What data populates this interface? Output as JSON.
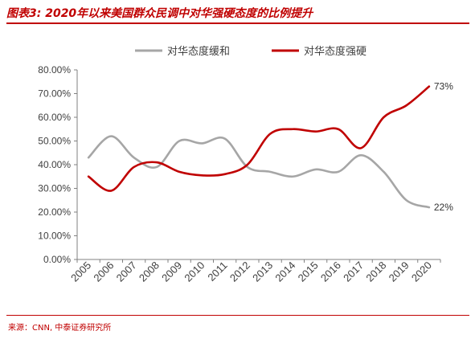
{
  "header": {
    "title": "图表3:  2020年以来美国群众民调中对华强硬态度的比例提升"
  },
  "footer": {
    "source": "来源：CNN, 中泰证券研究所"
  },
  "colors": {
    "accent": "#c00000",
    "series_soft": "#a6a6a6",
    "series_hard": "#c00000"
  },
  "chart_data": {
    "type": "line",
    "x": [
      "2005",
      "2006",
      "2007",
      "2008",
      "2009",
      "2010",
      "2011",
      "2012",
      "2013",
      "2014",
      "2015",
      "2016",
      "2017",
      "2018",
      "2019",
      "2020"
    ],
    "ylim": [
      0,
      80
    ],
    "yticks": [
      "0.00%",
      "10.00%",
      "20.00%",
      "30.00%",
      "40.00%",
      "50.00%",
      "60.00%",
      "70.00%",
      "80.00%"
    ],
    "legend_position": "top",
    "grid": false,
    "series": [
      {
        "name": "对华态度缓和",
        "color": "#a6a6a6",
        "values": [
          43,
          52,
          43,
          39,
          50,
          49,
          51,
          39,
          37,
          35,
          38,
          37,
          44,
          37,
          25,
          22
        ],
        "end_label": "22%"
      },
      {
        "name": "对华态度强硬",
        "color": "#c00000",
        "values": [
          35,
          29,
          39,
          41,
          37,
          35.5,
          36,
          40,
          53,
          55,
          54,
          55,
          47,
          60,
          65,
          73
        ],
        "end_label": "73%"
      }
    ]
  }
}
